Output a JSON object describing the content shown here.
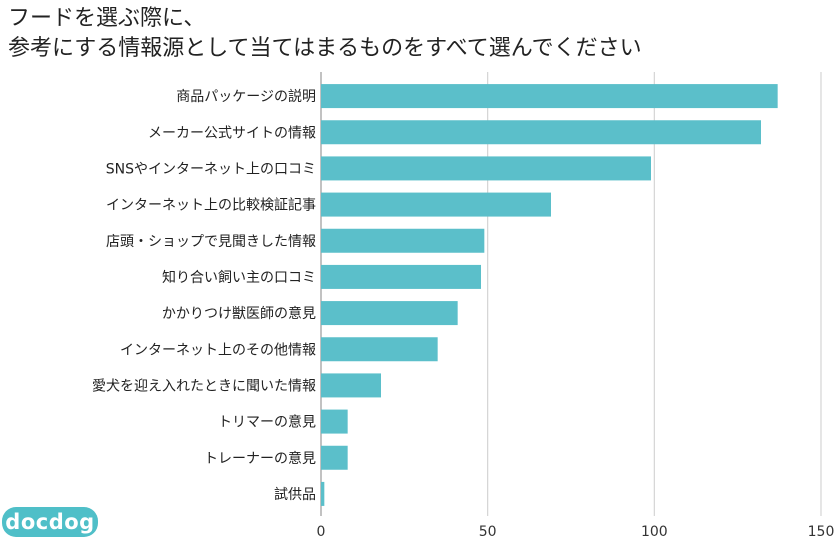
{
  "chart_data": {
    "type": "bar",
    "orientation": "horizontal",
    "title_lines": [
      "フードを選ぶ際に、",
      "参考にする情報源として当てはまるものをすべて選んでください"
    ],
    "categories": [
      "商品パッケージの説明",
      "メーカー公式サイトの情報",
      "SNSやインターネット上の口コミ",
      "インターネット上の比較検証記事",
      "店頭・ショップで見聞きした情報",
      "知り合い飼い主の口コミ",
      "かかりつけ獣医師の意見",
      "インターネット上のその他情報",
      "愛犬を迎え入れたときに聞いた情報",
      "トリマーの意見",
      "トレーナーの意見",
      "試供品"
    ],
    "values": [
      137,
      132,
      99,
      69,
      49,
      48,
      41,
      35,
      18,
      8,
      8,
      1
    ],
    "xlim": [
      0,
      150
    ],
    "xticks": [
      0,
      50,
      100,
      150
    ],
    "xtick_labels": [
      "0",
      "50",
      "100",
      "150"
    ],
    "grid": true,
    "bar_color": "#5bbfca"
  },
  "logo": {
    "text": "docdog",
    "color": "#4fbfc8"
  }
}
